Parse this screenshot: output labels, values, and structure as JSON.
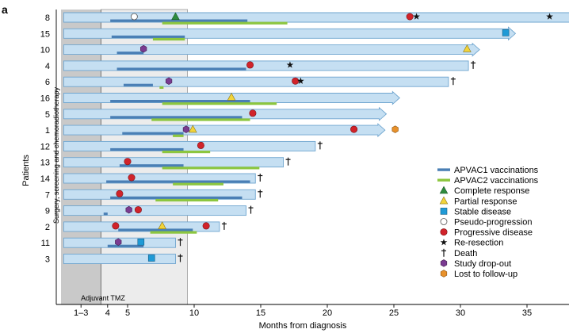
{
  "chart_data": {
    "type": "swimmer",
    "panel_label": "a",
    "ylabel": "Patients",
    "xlabel": "Months from diagnosis",
    "xlim": [
      0,
      39
    ],
    "xticks": [
      {
        "v": 1.5,
        "label": "1–3"
      },
      {
        "v": 3.5,
        "label": "4"
      },
      {
        "v": 5,
        "label": "5"
      },
      {
        "v": 10,
        "label": "10"
      },
      {
        "v": 15,
        "label": "15"
      },
      {
        "v": 20,
        "label": "20"
      },
      {
        "v": 25,
        "label": "25"
      },
      {
        "v": 30,
        "label": "30"
      },
      {
        "v": 35,
        "label": "35"
      }
    ],
    "phases": [
      {
        "label": "Surgery, screening and chemoradiotherapy",
        "x0": 0,
        "x1": 3
      },
      {
        "label": "Adjuvant TMZ",
        "x0": 3,
        "x1": 9.5
      }
    ],
    "patients": [
      {
        "id": "8",
        "end": 38.5,
        "arrow": true,
        "apvac1": [
          3.7,
          14
        ],
        "apvac2": [
          7.6,
          17
        ],
        "events": [
          {
            "t": 5.5,
            "type": "pseudo"
          },
          {
            "t": 8.6,
            "type": "cr"
          },
          {
            "t": 26.2,
            "type": "pd"
          },
          {
            "t": 26.7,
            "type": "rr"
          },
          {
            "t": 36.7,
            "type": "rr"
          }
        ]
      },
      {
        "id": "15",
        "end": 33.6,
        "arrow": true,
        "apvac1": [
          3.8,
          9.3
        ],
        "apvac2": [
          6.9,
          9.3
        ],
        "events": [
          {
            "t": 33.4,
            "type": "sd"
          }
        ]
      },
      {
        "id": "10",
        "end": 30.9,
        "arrow": true,
        "apvac1": [
          4.2,
          6.2
        ],
        "apvac2": [],
        "events": [
          {
            "t": 6.2,
            "type": "sd_drop"
          },
          {
            "t": 30.5,
            "type": "pr"
          }
        ]
      },
      {
        "id": "4",
        "end": 30.6,
        "arrow": false,
        "death": true,
        "apvac1": [
          4.2,
          13.9
        ],
        "apvac2": [],
        "events": [
          {
            "t": 14.2,
            "type": "pd"
          },
          {
            "t": 17.2,
            "type": "rr"
          }
        ]
      },
      {
        "id": "6",
        "end": 29.1,
        "arrow": false,
        "death": true,
        "apvac1": [
          4.7,
          6.9
        ],
        "apvac2": [
          7.4,
          7.7
        ],
        "events": [
          {
            "t": 8.1,
            "type": "sd_drop"
          },
          {
            "t": 17.6,
            "type": "pd"
          },
          {
            "t": 18.0,
            "type": "rr"
          }
        ]
      },
      {
        "id": "16",
        "end": 24.9,
        "arrow": true,
        "apvac1": [
          3.7,
          14.2
        ],
        "apvac2": [
          7.6,
          16.2
        ],
        "events": [
          {
            "t": 12.8,
            "type": "pr"
          }
        ]
      },
      {
        "id": "5",
        "end": 23.9,
        "arrow": true,
        "apvac1": [
          3.7,
          13.6
        ],
        "apvac2": [
          6.8,
          14.2
        ],
        "events": [
          {
            "t": 14.4,
            "type": "pd"
          }
        ]
      },
      {
        "id": "1",
        "end": 23.8,
        "arrow": true,
        "apvac1": [
          4.6,
          9.2
        ],
        "apvac2": [
          8.4,
          9.2
        ],
        "events": [
          {
            "t": 9.4,
            "type": "sd_drop"
          },
          {
            "t": 9.9,
            "type": "pr"
          },
          {
            "t": 22.0,
            "type": "pd"
          },
          {
            "t": 25.1,
            "type": "lost"
          }
        ]
      },
      {
        "id": "12",
        "end": 19.1,
        "arrow": false,
        "death": true,
        "apvac1": [
          3.7,
          9.2
        ],
        "apvac2": [
          7.6,
          11.2
        ],
        "events": [
          {
            "t": 10.5,
            "type": "pd"
          }
        ]
      },
      {
        "id": "13",
        "end": 16.7,
        "arrow": false,
        "death": true,
        "apvac1": [
          4.4,
          9.2
        ],
        "apvac2": [
          7.6,
          14.9
        ],
        "events": [
          {
            "t": 5.0,
            "type": "pd"
          }
        ]
      },
      {
        "id": "14",
        "end": 14.6,
        "arrow": false,
        "death": true,
        "apvac1": [
          3.4,
          14.2
        ],
        "apvac2": [
          8.4,
          12.2
        ],
        "events": [
          {
            "t": 5.3,
            "type": "pd"
          }
        ]
      },
      {
        "id": "7",
        "end": 14.6,
        "arrow": false,
        "death": true,
        "apvac1": [
          3.7,
          13.6
        ],
        "apvac2": [
          7.1,
          11.8
        ],
        "events": [
          {
            "t": 4.4,
            "type": "pd"
          }
        ]
      },
      {
        "id": "9",
        "end": 13.9,
        "arrow": false,
        "death": true,
        "apvac1": [
          3.2,
          3.5
        ],
        "apvac2": [],
        "events": [
          {
            "t": 5.1,
            "type": "sd_drop"
          },
          {
            "t": 5.8,
            "type": "pd"
          }
        ]
      },
      {
        "id": "2",
        "end": 11.9,
        "arrow": false,
        "death": true,
        "apvac1": [
          4.3,
          9.9
        ],
        "apvac2": [
          6.7,
          10.2
        ],
        "events": [
          {
            "t": 4.1,
            "type": "pd"
          },
          {
            "t": 7.6,
            "type": "pr"
          },
          {
            "t": 10.9,
            "type": "pd"
          }
        ]
      },
      {
        "id": "11",
        "end": 8.6,
        "arrow": false,
        "death": true,
        "apvac1": [
          3.5,
          6.2
        ],
        "apvac2": [],
        "events": [
          {
            "t": 4.3,
            "type": "sd_drop"
          },
          {
            "t": 6.0,
            "type": "sd"
          }
        ]
      },
      {
        "id": "3",
        "end": 8.6,
        "arrow": false,
        "death": true,
        "apvac1": [],
        "apvac2": [],
        "events": [
          {
            "t": 6.8,
            "type": "sd"
          }
        ]
      }
    ],
    "legend": [
      {
        "key": "apvac1",
        "label": "APVAC1 vaccinations"
      },
      {
        "key": "apvac2",
        "label": "APVAC2 vaccinations"
      },
      {
        "key": "cr",
        "label": "Complete response"
      },
      {
        "key": "pr",
        "label": "Partial response"
      },
      {
        "key": "sd",
        "label": "Stable disease"
      },
      {
        "key": "pseudo",
        "label": "Pseudo-progression"
      },
      {
        "key": "pd",
        "label": "Progressive disease"
      },
      {
        "key": "rr",
        "label": "Re-resection"
      },
      {
        "key": "death",
        "label": "Death"
      },
      {
        "key": "sd_drop",
        "label": "Study drop-out"
      },
      {
        "key": "lost",
        "label": "Lost to follow-up"
      }
    ],
    "legend_placement": "right",
    "colors": {
      "swim_fill": "#c5dff2",
      "swim_stroke": "#6fa5cf",
      "apvac1": "#4a7fb5",
      "apvac2": "#8cc63f",
      "cr": "#2e8b3e",
      "pr": "#f2d43a",
      "sd": "#1f9ad6",
      "pseudo": "#ffffff",
      "pd": "#d1232a",
      "rr": "#111111",
      "death": "#111111",
      "sd_drop": "#7a3b91",
      "lost": "#e8912b",
      "phase1": "#c9c9c9",
      "phase2": "#ececec"
    }
  }
}
